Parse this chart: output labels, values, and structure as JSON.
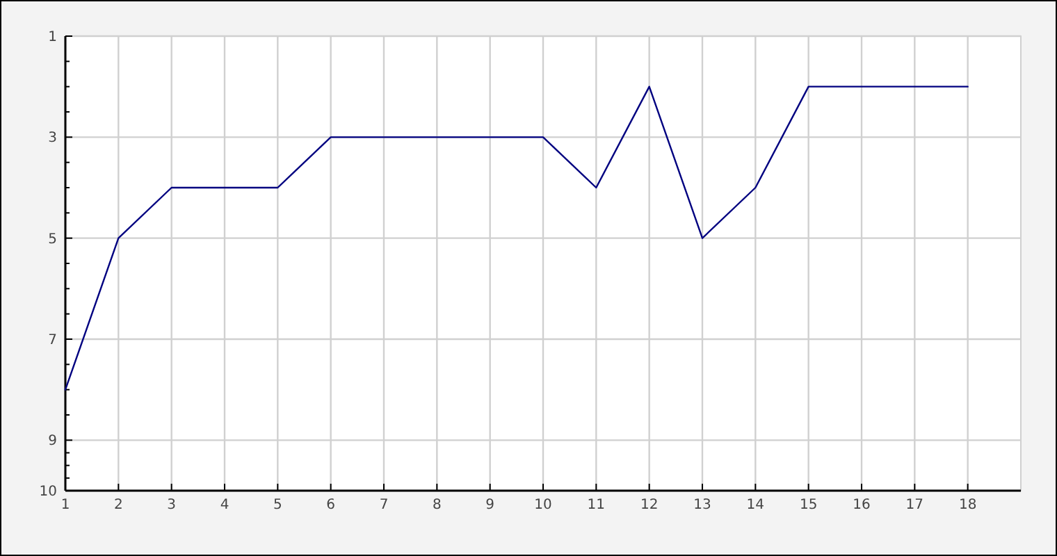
{
  "chart_data": {
    "type": "line",
    "x": [
      1,
      2,
      3,
      4,
      5,
      6,
      7,
      8,
      9,
      10,
      11,
      12,
      13,
      14,
      15,
      16,
      17,
      18
    ],
    "series": [
      {
        "color": "#000080",
        "values": [
          8,
          5,
          4,
          4,
          4,
          3,
          3,
          3,
          3,
          3,
          4,
          2,
          5,
          4,
          2,
          2,
          2,
          2
        ]
      }
    ],
    "xlim": [
      1,
      19
    ],
    "xticks": [
      1,
      2,
      3,
      4,
      5,
      6,
      7,
      8,
      9,
      10,
      11,
      12,
      13,
      14,
      15,
      16,
      17,
      18
    ],
    "ylim": [
      10,
      1
    ],
    "yticks": [
      1,
      {
        "value": 1.5,
        "label": null
      },
      {
        "value": 2,
        "label": null
      },
      {
        "value": 2.5,
        "label": null
      },
      3,
      {
        "value": 3.5,
        "label": null
      },
      {
        "value": 4,
        "label": null
      },
      {
        "value": 4.5,
        "label": null
      },
      5,
      {
        "value": 5.5,
        "label": null
      },
      {
        "value": 6,
        "label": null
      },
      {
        "value": 6.5,
        "label": null
      },
      7,
      {
        "value": 7.5,
        "label": null
      },
      {
        "value": 8,
        "label": null
      },
      {
        "value": 8.5,
        "label": null
      },
      9,
      {
        "value": 9.25,
        "label": null
      },
      {
        "value": 9.5,
        "label": null
      },
      {
        "value": 9.75,
        "label": null
      },
      10
    ],
    "grid": true
  }
}
